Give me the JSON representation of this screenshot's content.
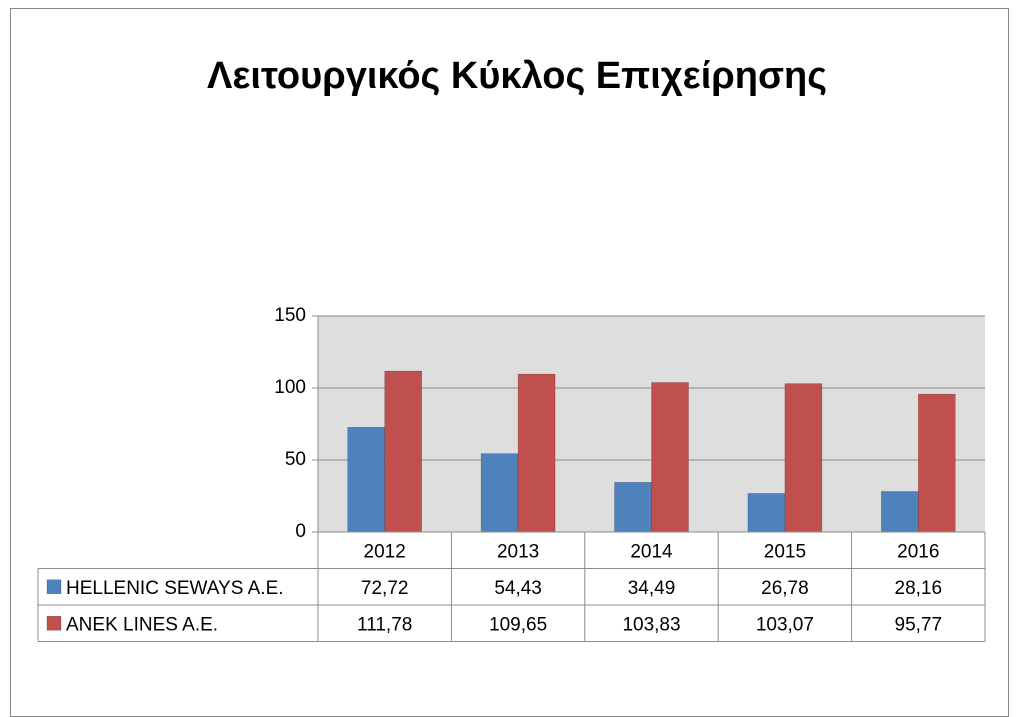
{
  "chart_data": {
    "type": "bar",
    "title": "Λειτουργικός Κύκλος Επιχείρησης",
    "categories": [
      "2012",
      "2013",
      "2014",
      "2015",
      "2016"
    ],
    "series": [
      {
        "name": "HELLENIC SEWAYS A.E.",
        "color": "#4f81bd",
        "values": [
          72.72,
          54.43,
          34.49,
          26.78,
          28.16
        ],
        "value_labels": [
          "72,72",
          "54,43",
          "34,49",
          "26,78",
          "28,16"
        ]
      },
      {
        "name": "ANEK LINES A.E.",
        "color": "#c0504d",
        "values": [
          111.78,
          109.65,
          103.83,
          103.07,
          95.77
        ],
        "value_labels": [
          "111,78",
          "109,65",
          "103,83",
          "103,07",
          "95,77"
        ]
      }
    ],
    "ylim": [
      0,
      150
    ],
    "yticks": [
      0,
      50,
      100,
      150
    ],
    "grid": true,
    "data_table": true
  }
}
